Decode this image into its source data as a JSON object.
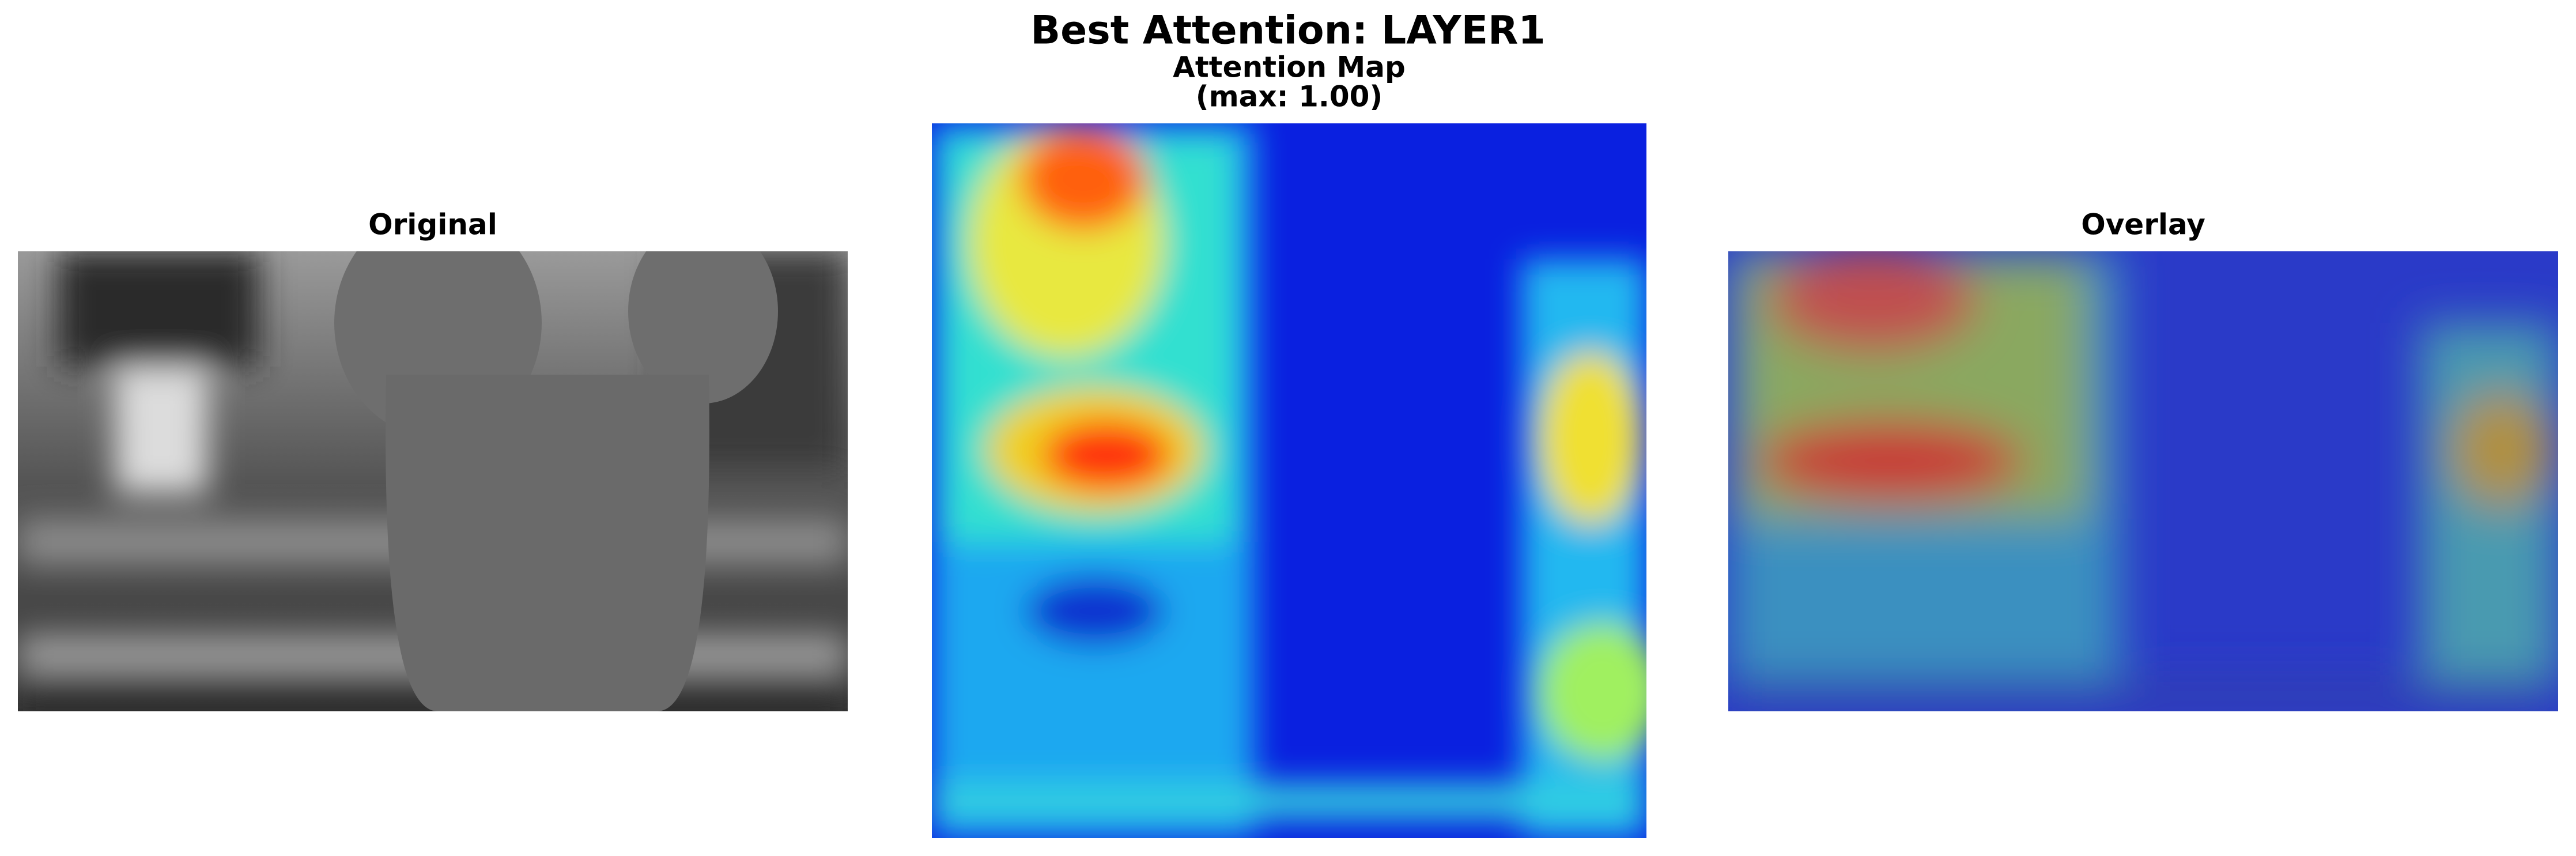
{
  "header": {
    "title": "Best Attention: LAYER1"
  },
  "panels": [
    {
      "title": "Original"
    },
    {
      "title": "Attention Map",
      "subtitle": "(max: 1.00)"
    },
    {
      "title": "Overlay"
    }
  ]
}
